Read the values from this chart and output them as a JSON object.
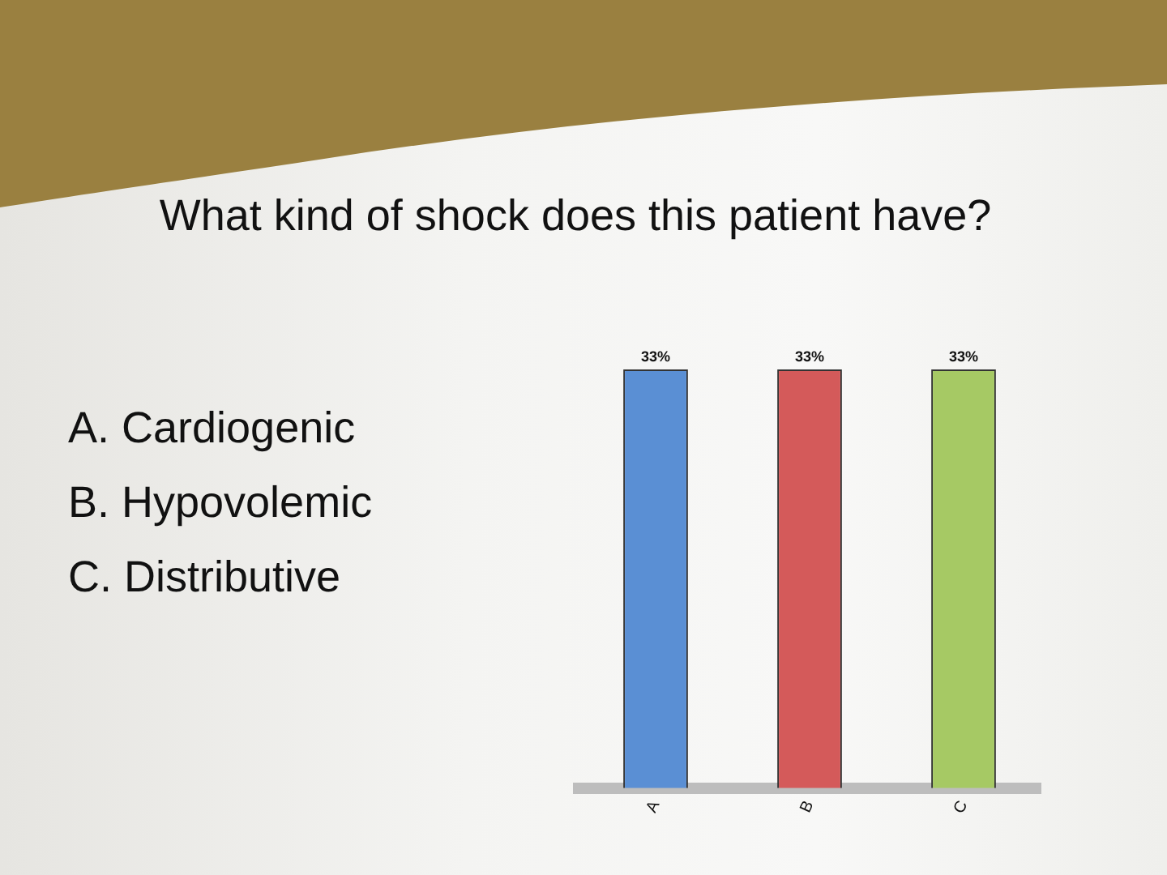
{
  "chart_data": {
    "type": "bar",
    "title": "What kind of shock does this patient have?",
    "annotations": [
      "A. Cardiogenic",
      "B. Hypovolemic",
      "C. Distributive"
    ],
    "categories": [
      "A",
      "B",
      "C"
    ],
    "values": [
      33,
      33,
      33
    ],
    "colors": [
      "#5a8fd4",
      "#d45a5a",
      "#a6c964"
    ],
    "value_labels": [
      "33%",
      "33%",
      "33%"
    ],
    "tick_labels": "x"
  }
}
